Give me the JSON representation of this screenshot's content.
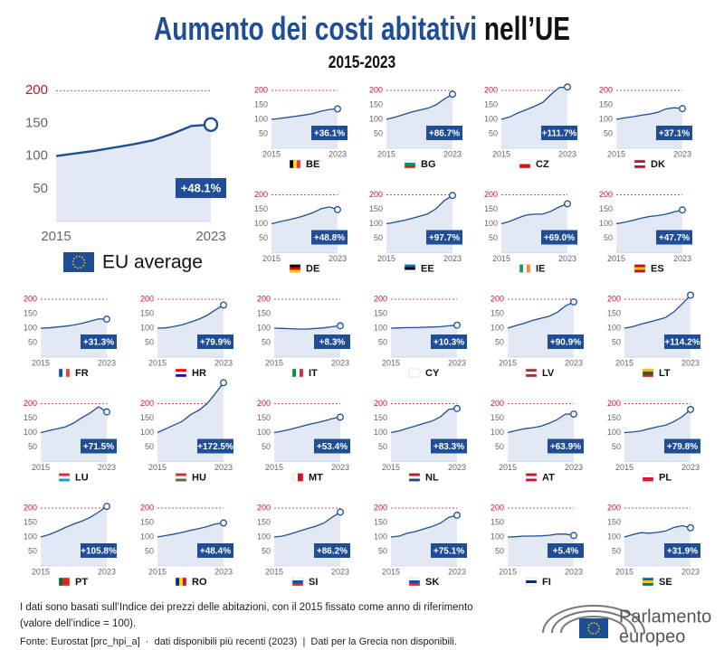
{
  "header": {
    "title": [
      "Aumento dei costi abitativi",
      "nell’UE"
    ],
    "subtitle": "2015-2023"
  },
  "chart_data": [
    {
      "type": "line",
      "name": "EU average",
      "x": [
        2015,
        2016,
        2017,
        2018,
        2019,
        2020,
        2021,
        2022,
        2023
      ],
      "values": [
        100,
        104,
        108,
        113,
        118,
        124,
        134,
        146,
        148.1
      ],
      "annotation": "+48.1%",
      "xlim": [
        2015,
        2023
      ],
      "ylim": [
        0,
        210
      ],
      "xticks": [
        2015,
        2023
      ],
      "yticks": [
        50,
        100,
        150,
        200
      ],
      "color": "#1f4e96",
      "grid": true
    },
    {
      "type": "line",
      "name": "BE",
      "x": [
        2015,
        2016,
        2017,
        2018,
        2019,
        2020,
        2021,
        2022,
        2023
      ],
      "values": [
        100,
        103,
        107,
        111,
        115,
        120,
        128,
        134,
        136.1
      ],
      "annotation": "+36.1%",
      "xlim": [
        2015,
        2023
      ],
      "ylim": [
        0,
        210
      ],
      "xticks": [
        2015,
        2023
      ],
      "yticks": [
        50,
        100,
        150,
        200
      ],
      "color": "#1f4e96",
      "grid": true
    },
    {
      "type": "line",
      "name": "BG",
      "x": [
        2015,
        2016,
        2017,
        2018,
        2019,
        2020,
        2021,
        2022,
        2023
      ],
      "values": [
        100,
        107,
        116,
        125,
        132,
        138,
        150,
        170,
        186.7
      ],
      "annotation": "+86.7%",
      "xlim": [
        2015,
        2023
      ],
      "ylim": [
        0,
        210
      ],
      "xticks": [
        2015,
        2023
      ],
      "yticks": [
        50,
        100,
        150,
        200
      ],
      "color": "#1f4e96",
      "grid": true
    },
    {
      "type": "line",
      "name": "CZ",
      "x": [
        2015,
        2016,
        2017,
        2018,
        2019,
        2020,
        2021,
        2022,
        2023
      ],
      "values": [
        100,
        108,
        122,
        133,
        145,
        158,
        186,
        210,
        211.7
      ],
      "annotation": "+111.7%",
      "xlim": [
        2015,
        2023
      ],
      "ylim": [
        0,
        210
      ],
      "xticks": [
        2015,
        2023
      ],
      "yticks": [
        50,
        100,
        150,
        200
      ],
      "color": "#1f4e96",
      "grid": true
    },
    {
      "type": "line",
      "name": "DK",
      "x": [
        2015,
        2016,
        2017,
        2018,
        2019,
        2020,
        2021,
        2022,
        2023
      ],
      "values": [
        100,
        105,
        109,
        114,
        118,
        124,
        136,
        140,
        137.1
      ],
      "annotation": "+37.1%",
      "xlim": [
        2015,
        2023
      ],
      "ylim": [
        0,
        210
      ],
      "xticks": [
        2015,
        2023
      ],
      "yticks": [
        50,
        100,
        150,
        200
      ],
      "color": "#1f4e96",
      "grid": true
    },
    {
      "type": "line",
      "name": "DE",
      "x": [
        2015,
        2016,
        2017,
        2018,
        2019,
        2020,
        2021,
        2022,
        2023
      ],
      "values": [
        100,
        107,
        113,
        120,
        128,
        138,
        152,
        158,
        148.8
      ],
      "annotation": "+48.8%",
      "xlim": [
        2015,
        2023
      ],
      "ylim": [
        0,
        210
      ],
      "xticks": [
        2015,
        2023
      ],
      "yticks": [
        50,
        100,
        150,
        200
      ],
      "color": "#1f4e96",
      "grid": true
    },
    {
      "type": "line",
      "name": "EE",
      "x": [
        2015,
        2016,
        2017,
        2018,
        2019,
        2020,
        2021,
        2022,
        2023
      ],
      "values": [
        100,
        105,
        111,
        118,
        126,
        134,
        152,
        180,
        197.7
      ],
      "annotation": "+97.7%",
      "xlim": [
        2015,
        2023
      ],
      "ylim": [
        0,
        210
      ],
      "xticks": [
        2015,
        2023
      ],
      "yticks": [
        50,
        100,
        150,
        200
      ],
      "color": "#1f4e96",
      "grid": true
    },
    {
      "type": "line",
      "name": "IE",
      "x": [
        2015,
        2016,
        2017,
        2018,
        2019,
        2020,
        2021,
        2022,
        2023
      ],
      "values": [
        100,
        108,
        120,
        130,
        133,
        133,
        143,
        158,
        169.0
      ],
      "annotation": "+69.0%",
      "xlim": [
        2015,
        2023
      ],
      "ylim": [
        0,
        210
      ],
      "xticks": [
        2015,
        2023
      ],
      "yticks": [
        50,
        100,
        150,
        200
      ],
      "color": "#1f4e96",
      "grid": true
    },
    {
      "type": "line",
      "name": "ES",
      "x": [
        2015,
        2016,
        2017,
        2018,
        2019,
        2020,
        2021,
        2022,
        2023
      ],
      "values": [
        100,
        105,
        112,
        119,
        125,
        128,
        133,
        141,
        147.7
      ],
      "annotation": "+47.7%",
      "xlim": [
        2015,
        2023
      ],
      "ylim": [
        0,
        210
      ],
      "xticks": [
        2015,
        2023
      ],
      "yticks": [
        50,
        100,
        150,
        200
      ],
      "color": "#1f4e96",
      "grid": true
    },
    {
      "type": "line",
      "name": "FR",
      "x": [
        2015,
        2016,
        2017,
        2018,
        2019,
        2020,
        2021,
        2022,
        2023
      ],
      "values": [
        100,
        101,
        104,
        107,
        111,
        117,
        124,
        132,
        131.3
      ],
      "annotation": "+31.3%",
      "xlim": [
        2015,
        2023
      ],
      "ylim": [
        0,
        210
      ],
      "xticks": [
        2015,
        2023
      ],
      "yticks": [
        50,
        100,
        150,
        200
      ],
      "color": "#1f4e96",
      "grid": true
    },
    {
      "type": "line",
      "name": "HR",
      "x": [
        2015,
        2016,
        2017,
        2018,
        2019,
        2020,
        2021,
        2022,
        2023
      ],
      "values": [
        100,
        101,
        106,
        112,
        121,
        131,
        144,
        163,
        179.9
      ],
      "annotation": "+79.9%",
      "xlim": [
        2015,
        2023
      ],
      "ylim": [
        0,
        210
      ],
      "xticks": [
        2015,
        2023
      ],
      "yticks": [
        50,
        100,
        150,
        200
      ],
      "color": "#1f4e96",
      "grid": true
    },
    {
      "type": "line",
      "name": "IT",
      "x": [
        2015,
        2016,
        2017,
        2018,
        2019,
        2020,
        2021,
        2022,
        2023
      ],
      "values": [
        100,
        99,
        98,
        97,
        97,
        99,
        101,
        105,
        108.3
      ],
      "annotation": "+8.3%",
      "xlim": [
        2015,
        2023
      ],
      "ylim": [
        0,
        210
      ],
      "xticks": [
        2015,
        2023
      ],
      "yticks": [
        50,
        100,
        150,
        200
      ],
      "color": "#1f4e96",
      "grid": true
    },
    {
      "type": "line",
      "name": "CY",
      "x": [
        2015,
        2016,
        2017,
        2018,
        2019,
        2020,
        2021,
        2022,
        2023
      ],
      "values": [
        100,
        101,
        102,
        102,
        103,
        104,
        105,
        108,
        110.3
      ],
      "annotation": "+10.3%",
      "xlim": [
        2015,
        2023
      ],
      "ylim": [
        0,
        210
      ],
      "xticks": [
        2015,
        2023
      ],
      "yticks": [
        50,
        100,
        150,
        200
      ],
      "color": "#1f4e96",
      "grid": true
    },
    {
      "type": "line",
      "name": "LV",
      "x": [
        2015,
        2016,
        2017,
        2018,
        2019,
        2020,
        2021,
        2022,
        2023
      ],
      "values": [
        100,
        109,
        117,
        127,
        134,
        141,
        155,
        177,
        190.9
      ],
      "annotation": "+90.9%",
      "xlim": [
        2015,
        2023
      ],
      "ylim": [
        0,
        210
      ],
      "xticks": [
        2015,
        2023
      ],
      "yticks": [
        50,
        100,
        150,
        200
      ],
      "color": "#1f4e96",
      "grid": true
    },
    {
      "type": "line",
      "name": "LT",
      "x": [
        2015,
        2016,
        2017,
        2018,
        2019,
        2020,
        2021,
        2022,
        2023
      ],
      "values": [
        100,
        105,
        114,
        121,
        129,
        137,
        157,
        184,
        214.2
      ],
      "annotation": "+114.2%",
      "xlim": [
        2015,
        2023
      ],
      "ylim": [
        0,
        210
      ],
      "xticks": [
        2015,
        2023
      ],
      "yticks": [
        50,
        100,
        150,
        200
      ],
      "color": "#1f4e96",
      "grid": true
    },
    {
      "type": "line",
      "name": "LU",
      "x": [
        2015,
        2016,
        2017,
        2018,
        2019,
        2020,
        2021,
        2022,
        2023
      ],
      "values": [
        100,
        107,
        113,
        120,
        133,
        152,
        168,
        189,
        171.5
      ],
      "annotation": "+71.5%",
      "xlim": [
        2015,
        2023
      ],
      "ylim": [
        0,
        210
      ],
      "xticks": [
        2015,
        2023
      ],
      "yticks": [
        50,
        100,
        150,
        200
      ],
      "color": "#1f4e96",
      "grid": true
    },
    {
      "type": "line",
      "name": "HU",
      "x": [
        2015,
        2016,
        2017,
        2018,
        2019,
        2020,
        2021,
        2022,
        2023
      ],
      "values": [
        100,
        113,
        126,
        139,
        162,
        177,
        200,
        235,
        272.5
      ],
      "annotation": "+172.5%",
      "xlim": [
        2015,
        2023
      ],
      "ylim": [
        0,
        210
      ],
      "xticks": [
        2015,
        2023
      ],
      "yticks": [
        50,
        100,
        150,
        200
      ],
      "color": "#1f4e96",
      "grid": true
    },
    {
      "type": "line",
      "name": "MT",
      "x": [
        2015,
        2016,
        2017,
        2018,
        2019,
        2020,
        2021,
        2022,
        2023
      ],
      "values": [
        100,
        105,
        112,
        119,
        127,
        133,
        140,
        148,
        153.4
      ],
      "annotation": "+53.4%",
      "xlim": [
        2015,
        2023
      ],
      "ylim": [
        0,
        210
      ],
      "xticks": [
        2015,
        2023
      ],
      "yticks": [
        50,
        100,
        150,
        200
      ],
      "color": "#1f4e96",
      "grid": true
    },
    {
      "type": "line",
      "name": "NL",
      "x": [
        2015,
        2016,
        2017,
        2018,
        2019,
        2020,
        2021,
        2022,
        2023
      ],
      "values": [
        100,
        106,
        115,
        123,
        132,
        140,
        155,
        180,
        183.3
      ],
      "annotation": "+83.3%",
      "xlim": [
        2015,
        2023
      ],
      "ylim": [
        0,
        210
      ],
      "xticks": [
        2015,
        2023
      ],
      "yticks": [
        50,
        100,
        150,
        200
      ],
      "color": "#1f4e96",
      "grid": true
    },
    {
      "type": "line",
      "name": "AT",
      "x": [
        2015,
        2016,
        2017,
        2018,
        2019,
        2020,
        2021,
        2022,
        2023
      ],
      "values": [
        100,
        107,
        113,
        117,
        122,
        132,
        145,
        164,
        163.9
      ],
      "annotation": "+63.9%",
      "xlim": [
        2015,
        2023
      ],
      "ylim": [
        0,
        210
      ],
      "xticks": [
        2015,
        2023
      ],
      "yticks": [
        50,
        100,
        150,
        200
      ],
      "color": "#1f4e96",
      "grid": true
    },
    {
      "type": "line",
      "name": "PL",
      "x": [
        2015,
        2016,
        2017,
        2018,
        2019,
        2020,
        2021,
        2022,
        2023
      ],
      "values": [
        100,
        102,
        106,
        113,
        120,
        126,
        138,
        155,
        179.8
      ],
      "annotation": "+79.8%",
      "xlim": [
        2015,
        2023
      ],
      "ylim": [
        0,
        210
      ],
      "xticks": [
        2015,
        2023
      ],
      "yticks": [
        50,
        100,
        150,
        200
      ],
      "color": "#1f4e96",
      "grid": true
    },
    {
      "type": "line",
      "name": "PT",
      "x": [
        2015,
        2016,
        2017,
        2018,
        2019,
        2020,
        2021,
        2022,
        2023
      ],
      "values": [
        100,
        108,
        120,
        133,
        145,
        155,
        168,
        186,
        205.8
      ],
      "annotation": "+105.8%",
      "xlim": [
        2015,
        2023
      ],
      "ylim": [
        0,
        210
      ],
      "xticks": [
        2015,
        2023
      ],
      "yticks": [
        50,
        100,
        150,
        200
      ],
      "color": "#1f4e96",
      "grid": true
    },
    {
      "type": "line",
      "name": "RO",
      "x": [
        2015,
        2016,
        2017,
        2018,
        2019,
        2020,
        2021,
        2022,
        2023
      ],
      "values": [
        100,
        105,
        110,
        116,
        123,
        129,
        136,
        145,
        148.4
      ],
      "annotation": "+48.4%",
      "xlim": [
        2015,
        2023
      ],
      "ylim": [
        0,
        210
      ],
      "xticks": [
        2015,
        2023
      ],
      "yticks": [
        50,
        100,
        150,
        200
      ],
      "color": "#1f4e96",
      "grid": true
    },
    {
      "type": "line",
      "name": "SI",
      "x": [
        2015,
        2016,
        2017,
        2018,
        2019,
        2020,
        2021,
        2022,
        2023
      ],
      "values": [
        100,
        103,
        111,
        120,
        129,
        137,
        148,
        168,
        186.2
      ],
      "annotation": "+86.2%",
      "xlim": [
        2015,
        2023
      ],
      "ylim": [
        0,
        210
      ],
      "xticks": [
        2015,
        2023
      ],
      "yticks": [
        50,
        100,
        150,
        200
      ],
      "color": "#1f4e96",
      "grid": true
    },
    {
      "type": "line",
      "name": "SK",
      "x": [
        2015,
        2016,
        2017,
        2018,
        2019,
        2020,
        2021,
        2022,
        2023
      ],
      "values": [
        100,
        103,
        113,
        119,
        128,
        137,
        148,
        168,
        175.1
      ],
      "annotation": "+75.1%",
      "xlim": [
        2015,
        2023
      ],
      "ylim": [
        0,
        210
      ],
      "xticks": [
        2015,
        2023
      ],
      "yticks": [
        50,
        100,
        150,
        200
      ],
      "color": "#1f4e96",
      "grid": true
    },
    {
      "type": "line",
      "name": "FI",
      "x": [
        2015,
        2016,
        2017,
        2018,
        2019,
        2020,
        2021,
        2022,
        2023
      ],
      "values": [
        100,
        101,
        103,
        103,
        104,
        106,
        110,
        110,
        105.4
      ],
      "annotation": "+5.4%",
      "xlim": [
        2015,
        2023
      ],
      "ylim": [
        0,
        210
      ],
      "xticks": [
        2015,
        2023
      ],
      "yticks": [
        50,
        100,
        150,
        200
      ],
      "color": "#1f4e96",
      "grid": true
    },
    {
      "type": "line",
      "name": "SE",
      "x": [
        2015,
        2016,
        2017,
        2018,
        2019,
        2020,
        2021,
        2022,
        2023
      ],
      "values": [
        100,
        108,
        115,
        113,
        116,
        121,
        133,
        139,
        131.9
      ],
      "annotation": "+31.9%",
      "xlim": [
        2015,
        2023
      ],
      "ylim": [
        0,
        210
      ],
      "xticks": [
        2015,
        2023
      ],
      "yticks": [
        50,
        100,
        150,
        200
      ],
      "color": "#1f4e96",
      "grid": true
    }
  ],
  "footer": {
    "note": [
      "I dati sono basati sull’Indice dei prezzi delle abitazioni, con il 2015 fissato come anno di riferimento",
      "(valore dell’indice = 100)."
    ],
    "source": "Fonte: Eurostat [prc_hpi_a]  ·  dati disponibili più recenti (2023)  |  Dati per la Grecia non disponibili.",
    "logo": [
      "Parlamento",
      "europeo"
    ]
  }
}
